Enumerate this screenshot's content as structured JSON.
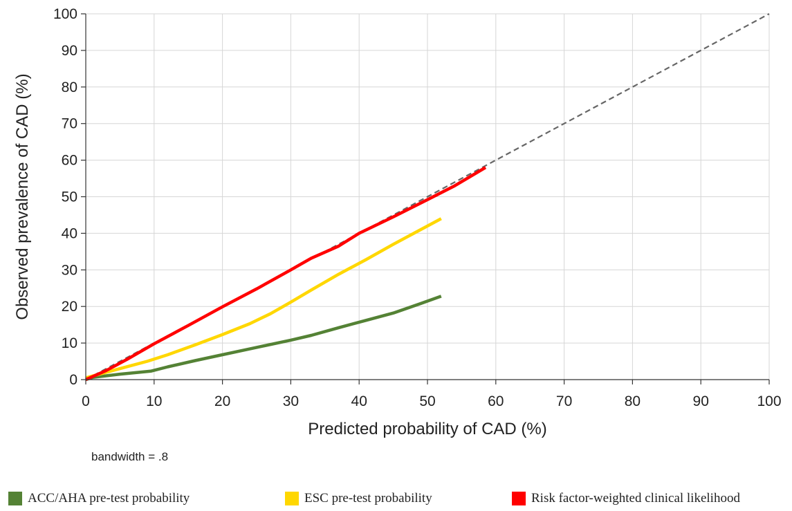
{
  "chart_data": {
    "type": "line",
    "title": "",
    "xlabel": "Predicted probability of CAD (%)",
    "ylabel": "Observed prevalence of CAD  (%)",
    "xlim": [
      0,
      100
    ],
    "ylim": [
      0,
      100
    ],
    "xticks": [
      "0",
      "10",
      "20",
      "30",
      "40",
      "50",
      "60",
      "70",
      "80",
      "90",
      "100"
    ],
    "yticks": [
      "0",
      "10",
      "20",
      "30",
      "40",
      "50",
      "60",
      "70",
      "80",
      "90",
      "100"
    ],
    "grid": true,
    "legend_position": "bottom",
    "note": "bandwidth = .8",
    "reference_line": {
      "style": "dashed",
      "color": "#666666",
      "x": [
        0,
        100
      ],
      "y": [
        0,
        100
      ]
    },
    "series": [
      {
        "name": "ACC/AHA pre-test probability",
        "color": "#548235",
        "x": [
          0,
          1,
          5,
          9.5,
          12,
          16,
          20,
          25,
          30,
          33,
          37,
          41,
          45,
          49,
          52
        ],
        "y": [
          0,
          0.6,
          1.5,
          2.3,
          3.5,
          5.2,
          6.8,
          8.8,
          10.8,
          12.1,
          14.2,
          16.2,
          18.2,
          20.8,
          22.8
        ]
      },
      {
        "name": "ESC pre-test probability",
        "color": "#ffd700",
        "x": [
          0,
          2,
          5,
          9,
          12,
          16,
          20,
          24,
          27,
          30,
          33,
          37,
          41,
          45,
          49,
          52
        ],
        "y": [
          0.5,
          1.5,
          3,
          5,
          6.8,
          9.5,
          12.3,
          15.3,
          18,
          21.2,
          24.5,
          28.8,
          32.8,
          37,
          41,
          44
        ]
      },
      {
        "name": "Risk factor-weighted clinical likelihood",
        "color": "#ff0000",
        "x": [
          0,
          3,
          6,
          10,
          15,
          20,
          25,
          30,
          33,
          37,
          40,
          45,
          50,
          54,
          58.5
        ],
        "y": [
          0,
          2.5,
          5.5,
          9.8,
          14.8,
          19.9,
          24.8,
          30,
          33.2,
          36.5,
          40,
          44.5,
          49.2,
          53,
          58
        ]
      }
    ]
  }
}
